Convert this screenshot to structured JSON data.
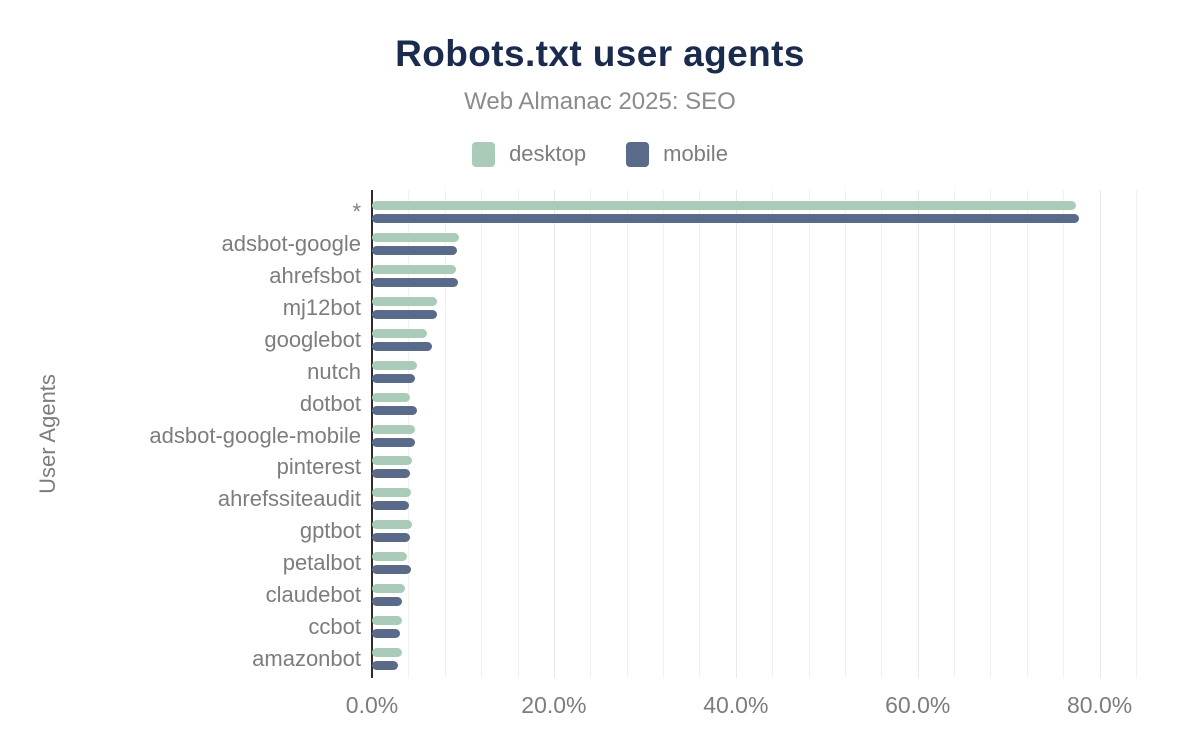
{
  "header": {
    "title": "Robots.txt user agents",
    "subtitle": "Web Almanac 2025: SEO"
  },
  "legend": {
    "items": [
      {
        "label": "desktop",
        "color": "#a9cbb7"
      },
      {
        "label": "mobile",
        "color": "#5a6b8a"
      }
    ]
  },
  "axes": {
    "y_axis_title": "User Agents",
    "x_tick_labels": [
      "0.0%",
      "20.0%",
      "40.0%",
      "60.0%",
      "80.0%"
    ]
  },
  "colors": {
    "title_text": "#1a2b4d",
    "subtitle_text": "#8b8b8b",
    "label_text": "#7d7d7d",
    "desktop_bar": "#a9cbb7",
    "mobile_bar": "#5a6b8a",
    "axis_line": "#2d2d2d",
    "gridline": "#f1f1f1"
  },
  "chart_data": {
    "type": "bar",
    "orientation": "horizontal",
    "title": "Robots.txt user agents",
    "subtitle": "Web Almanac 2025: SEO",
    "xlabel": "",
    "ylabel": "User Agents",
    "unit": "%",
    "xlim": [
      0,
      84
    ],
    "x_tick_step": 20,
    "gridline_step": 4,
    "grid": true,
    "legend_position": "top",
    "categories": [
      "*",
      "adsbot-google",
      "ahrefsbot",
      "mj12bot",
      "googlebot",
      "nutch",
      "dotbot",
      "adsbot-google-mobile",
      "pinterest",
      "ahrefssiteaudit",
      "gptbot",
      "petalbot",
      "claudebot",
      "ccbot",
      "amazonbot"
    ],
    "series": [
      {
        "name": "desktop",
        "color": "#a9cbb7",
        "values": [
          77.4,
          9.6,
          9.2,
          7.1,
          6.1,
          4.9,
          4.2,
          4.7,
          4.4,
          4.3,
          4.4,
          3.9,
          3.6,
          3.3,
          3.3
        ]
      },
      {
        "name": "mobile",
        "color": "#5a6b8a",
        "values": [
          77.7,
          9.4,
          9.5,
          7.2,
          6.6,
          4.7,
          5.0,
          4.7,
          4.2,
          4.1,
          4.2,
          4.3,
          3.3,
          3.1,
          2.9
        ]
      }
    ]
  }
}
